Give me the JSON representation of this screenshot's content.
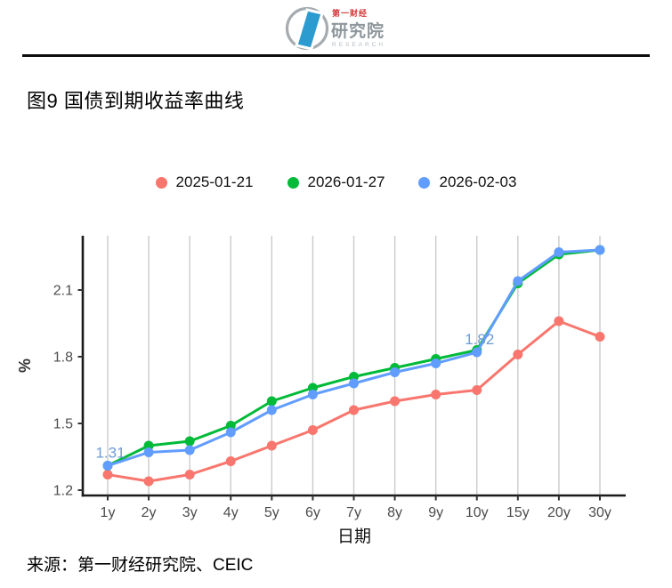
{
  "header": {
    "logo": {
      "line1": "第一财经",
      "line2": "研究院",
      "line3": "RESEARCH"
    }
  },
  "title": "图9 国债到期收益率曲线",
  "source": "来源：第一财经研究院、CEIC",
  "colors": {
    "accent_red": "#F8766D",
    "accent_green": "#00BA38",
    "accent_blue": "#619CFF",
    "annotation_blue": "#6D9CD6",
    "gridline": "#CBCBCB",
    "axis": "#1A1A1A",
    "tick_mark": "#333333",
    "tick_label": "#4D4D4D",
    "logo_blue": "#2C9BD0",
    "logo_red": "#D23B3B",
    "logo_gray": "#8E979C",
    "logo_light_gray": "#B3BAC0"
  },
  "chart_data": {
    "type": "line",
    "title": "图9 国债到期收益率曲线",
    "xlabel": "日期",
    "ylabel": "%",
    "categories": [
      "1y",
      "2y",
      "3y",
      "4y",
      "5y",
      "6y",
      "7y",
      "8y",
      "9y",
      "10y",
      "15y",
      "20y",
      "30y"
    ],
    "y_ticks": [
      "1.2",
      "1.5",
      "1.8",
      "2.1"
    ],
    "ylim": [
      1.18,
      2.34
    ],
    "grid": "vertical-only",
    "legend_position": "top-center",
    "series": [
      {
        "name": "2025-01-21",
        "color": "#F8766D",
        "values": [
          1.27,
          1.24,
          1.27,
          1.33,
          1.4,
          1.47,
          1.56,
          1.6,
          1.63,
          1.65,
          1.81,
          1.96,
          1.89
        ]
      },
      {
        "name": "2026-01-27",
        "color": "#00BA38",
        "values": [
          1.31,
          1.4,
          1.42,
          1.49,
          1.6,
          1.66,
          1.71,
          1.75,
          1.79,
          1.83,
          2.13,
          2.26,
          2.28
        ]
      },
      {
        "name": "2026-02-03",
        "color": "#619CFF",
        "values": [
          1.31,
          1.37,
          1.38,
          1.46,
          1.56,
          1.63,
          1.68,
          1.73,
          1.77,
          1.82,
          2.14,
          2.27,
          2.28
        ]
      }
    ],
    "annotations": [
      {
        "text": "1.31",
        "category": "1y",
        "value": 1.31
      },
      {
        "text": "1.82",
        "category": "10y",
        "value": 1.82
      }
    ]
  }
}
